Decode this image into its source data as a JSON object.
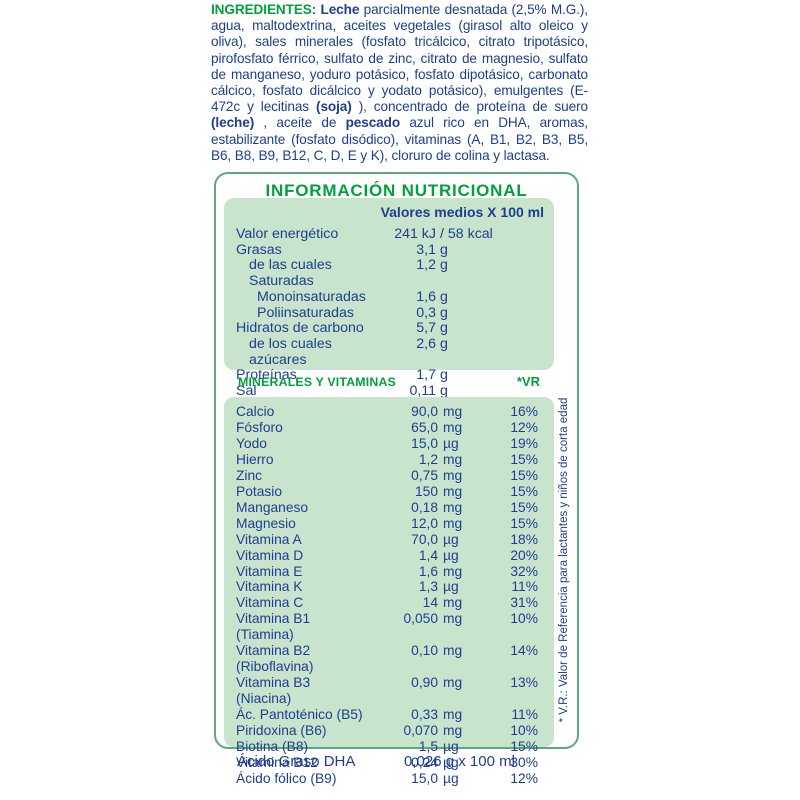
{
  "colors": {
    "text_blue": "#1f3e8f",
    "brand_green": "#00a13c",
    "border_green": "#5fa87c",
    "panel_mint": "#c8e4cd",
    "background": "#ffffff"
  },
  "ingredients": {
    "segments": [
      {
        "t": "INGREDIENTES: ",
        "cls": "seg-green"
      },
      {
        "t": "Leche",
        "cls": "seg-bold"
      },
      {
        "t": " parcialmente desnatada (2,5% M.G.), agua, maltodextrina, aceites vegetales (girasol alto oleico y oliva), sales minerales (fosfato tricálcico, citrato tripotásico, pirofosfato férrico, sulfato de zinc, citrato de magnesio, sulfato de manganeso, yoduro potásico, fosfato dipotásico, carbonato cálcico, fosfato dicálcico y yodato potásico), emulgentes (E-472c y lecitinas "
      },
      {
        "t": "(soja)",
        "cls": "seg-bold"
      },
      {
        "t": "), concentrado de proteína de suero "
      },
      {
        "t": "(leche)",
        "cls": "seg-bold"
      },
      {
        "t": ", aceite de "
      },
      {
        "t": "pescado",
        "cls": "seg-bold"
      },
      {
        "t": " azul rico en DHA, aromas, estabilizante (fosfato disódico), vitaminas (A, B1, B2, B3, B5, B6, B8, B9, B12, C, D, E y K), cloruro de colina y lactasa."
      }
    ]
  },
  "nutrition_box": {
    "title": "INFORMACIÓN NUTRICIONAL",
    "values_panel": {
      "header": "Valores medios X 100 ml",
      "rows": [
        {
          "label": "Valor energético",
          "num": "241 kJ",
          "unit": "/ 58 kcal"
        },
        {
          "label": "Grasas",
          "num": "3,1",
          "unit": "g"
        },
        {
          "label": "de las cuales Saturadas",
          "cls": "ind1",
          "num": "1,2",
          "unit": "g"
        },
        {
          "label": "Monoinsaturadas",
          "cls": "ind2",
          "num": "1,6",
          "unit": "g"
        },
        {
          "label": "Poliinsaturadas",
          "cls": "ind2",
          "num": "0,3",
          "unit": "g"
        },
        {
          "label": "Hidratos de carbono",
          "num": "5,7",
          "unit": "g"
        },
        {
          "label": "de los cuales azúcares",
          "cls": "ind1",
          "num": "2,6",
          "unit": "g"
        },
        {
          "label": "Proteínas",
          "num": "1,7",
          "unit": "g"
        },
        {
          "label": "Sal",
          "num": "0,11",
          "unit": "g"
        }
      ]
    },
    "minerals_header": {
      "label": "MINERALES Y VITAMINAS",
      "vr": "*VR"
    },
    "minerals_panel": {
      "rows": [
        {
          "label": "Calcio",
          "num": "90,0",
          "unit": "mg",
          "vr": "16%"
        },
        {
          "label": "Fósforo",
          "num": "65,0",
          "unit": "mg",
          "vr": "12%"
        },
        {
          "label": "Yodo",
          "num": "15,0",
          "unit": "µg",
          "vr": "19%"
        },
        {
          "label": "Hierro",
          "num": "1,2",
          "unit": "mg",
          "vr": "15%"
        },
        {
          "label": "Zinc",
          "num": "0,75",
          "unit": "mg",
          "vr": "15%"
        },
        {
          "label": "Potasio",
          "num": "150",
          "unit": "mg",
          "vr": "15%"
        },
        {
          "label": "Manganeso",
          "num": "0,18",
          "unit": "mg",
          "vr": "15%"
        },
        {
          "label": "Magnesio",
          "num": "12,0",
          "unit": "mg",
          "vr": "15%"
        },
        {
          "label": "Vitamina A",
          "num": "70,0",
          "unit": "µg",
          "vr": "18%"
        },
        {
          "label": "Vitamina D",
          "num": "1,4",
          "unit": "µg",
          "vr": "20%"
        },
        {
          "label": "Vitamina E",
          "num": "1,6",
          "unit": "mg",
          "vr": "32%"
        },
        {
          "label": "Vitamina K",
          "num": "1,3",
          "unit": "µg",
          "vr": "11%"
        },
        {
          "label": "Vitamina C",
          "num": "14",
          "unit": "mg",
          "vr": "31%"
        },
        {
          "label": "Vitamina B1 (Tiamina)",
          "num": "0,050",
          "unit": "mg",
          "vr": "10%"
        },
        {
          "label": "Vitamina B2 (Riboflavina)",
          "num": "0,10",
          "unit": "mg",
          "vr": "14%"
        },
        {
          "label": "Vitamina B3 (Niacina)",
          "num": "0,90",
          "unit": "mg",
          "vr": "13%"
        },
        {
          "label": "Ác. Pantoténico (B5)",
          "num": "0,33",
          "unit": "mg",
          "vr": "11%"
        },
        {
          "label": "Piridoxina (B6)",
          "num": "0,070",
          "unit": "mg",
          "vr": "10%"
        },
        {
          "label": "Biotina (B8)",
          "num": "1,5",
          "unit": "µg",
          "vr": "15%"
        },
        {
          "label": "Vitamina B12",
          "num": "0,24",
          "unit": "µg",
          "vr": "30%"
        },
        {
          "label": "Ácido fólico (B9)",
          "num": "15,0",
          "unit": "µg",
          "vr": "12%"
        }
      ]
    },
    "vr_note": "* V.R.: Valor de Referencia para lactantes y niños de corta edad"
  },
  "footer": {
    "label": "Ácido Graso DHA",
    "value": "0,026 g x 100 ml"
  }
}
